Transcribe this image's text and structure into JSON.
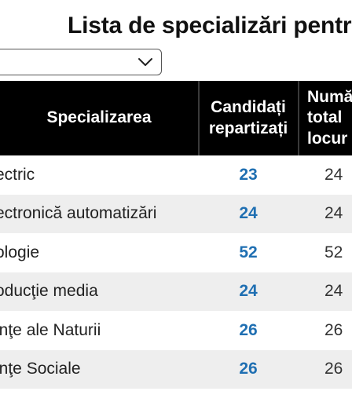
{
  "page": {
    "title": "Lista de specializări pentr"
  },
  "filter": {
    "selected_value": ""
  },
  "table": {
    "headers": {
      "specialization": "Specializarea",
      "candidates": "Candidați\nrepartizați",
      "total": "Numă\ntotal\nlocur"
    },
    "rows": [
      {
        "specialization": "ectric",
        "candidates": "23",
        "total": "24"
      },
      {
        "specialization": "ectronică automatizări",
        "candidates": "24",
        "total": "24"
      },
      {
        "specialization": "ologie",
        "candidates": "52",
        "total": "52"
      },
      {
        "specialization": "oducţie media",
        "candidates": "24",
        "total": "24"
      },
      {
        "specialization": "inţe ale Naturii",
        "candidates": "26",
        "total": "26"
      },
      {
        "specialization": "inţe Sociale",
        "candidates": "26",
        "total": "26"
      }
    ]
  },
  "colors": {
    "header_bg": "#000000",
    "accent_blue": "#1f6fb2",
    "row_alt_bg": "#eeeeee"
  },
  "icons": {
    "dropdown": "chevron-down-icon"
  }
}
